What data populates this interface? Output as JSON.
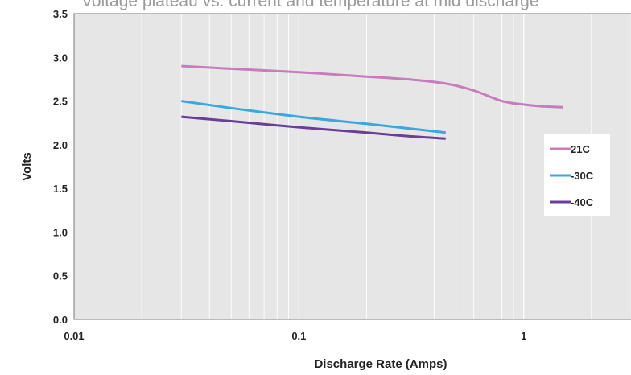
{
  "chart_data": {
    "type": "line",
    "title": "Voltage plateau vs. current and temperature at mid discharge",
    "xlabel": "Discharge Rate (Amps)",
    "ylabel": "Volts",
    "xscale": "log",
    "xlim": [
      0.01,
      3
    ],
    "ylim": [
      0,
      3.5
    ],
    "xticks": [
      0.01,
      0.1,
      1
    ],
    "xtick_labels": [
      "0.01",
      "0.1",
      "1"
    ],
    "yticks": [
      0,
      0.5,
      1,
      1.5,
      2,
      2.5,
      3,
      3.5
    ],
    "ytick_labels": [
      "0.0",
      "0.5",
      "1.0",
      "1.5",
      "2.0",
      "2.5",
      "3.0",
      "3.5"
    ],
    "grid": "vertical minor log gridlines",
    "legend_position": "right",
    "series": [
      {
        "name": "21C",
        "color": "#c77cbd",
        "x": [
          0.03,
          0.05,
          0.1,
          0.2,
          0.3,
          0.45,
          0.6,
          0.8,
          1.0,
          1.2,
          1.5
        ],
        "y": [
          2.9,
          2.87,
          2.83,
          2.78,
          2.75,
          2.7,
          2.62,
          2.5,
          2.46,
          2.44,
          2.43
        ]
      },
      {
        "name": "-30C",
        "color": "#3aa7e0",
        "x": [
          0.03,
          0.05,
          0.1,
          0.2,
          0.3,
          0.45
        ],
        "y": [
          2.5,
          2.42,
          2.32,
          2.24,
          2.19,
          2.14
        ]
      },
      {
        "name": "-40C",
        "color": "#6a3d9a",
        "x": [
          0.03,
          0.05,
          0.1,
          0.2,
          0.3,
          0.45
        ],
        "y": [
          2.32,
          2.27,
          2.2,
          2.14,
          2.1,
          2.07
        ]
      }
    ]
  }
}
